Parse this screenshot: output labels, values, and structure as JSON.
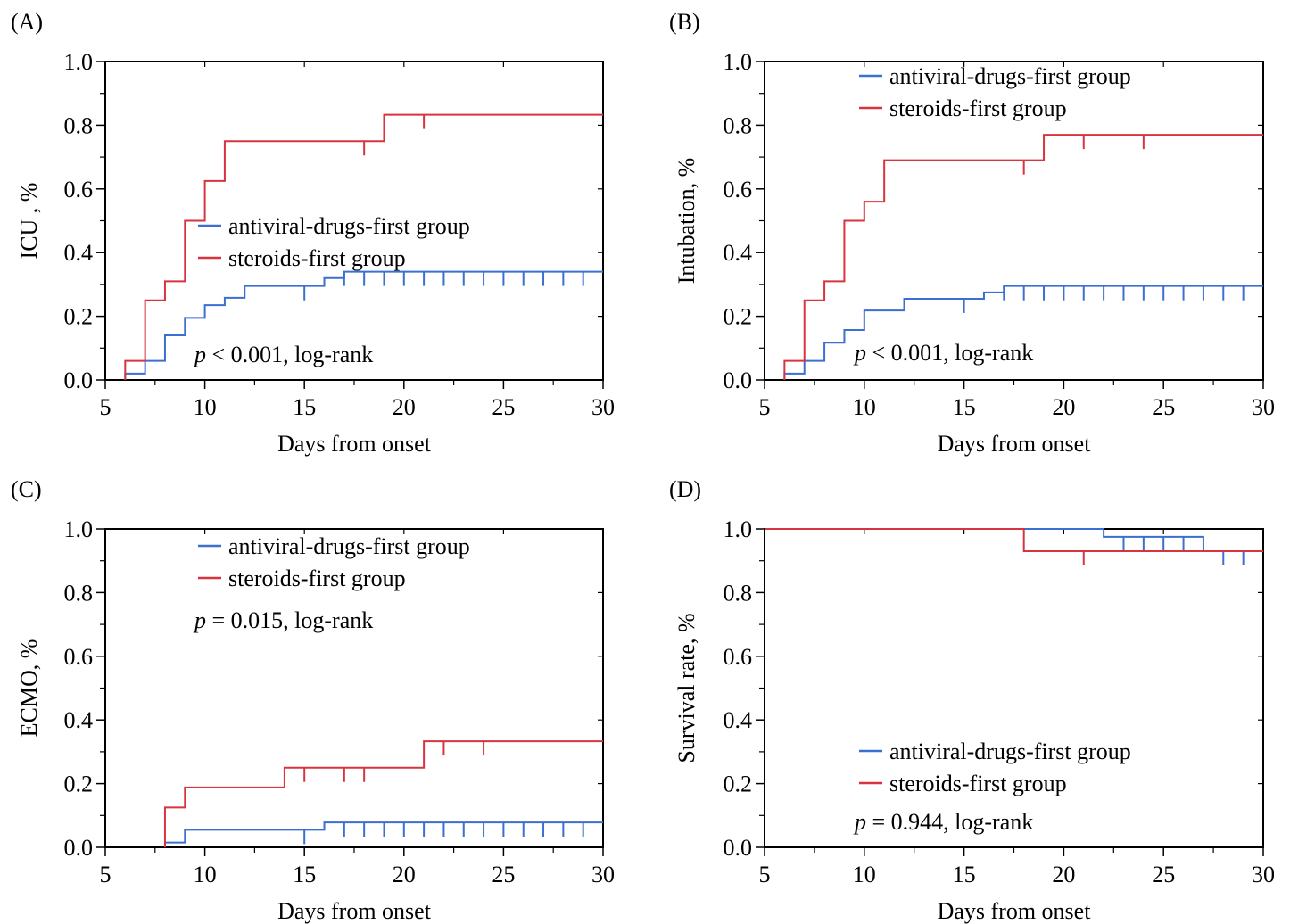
{
  "colors": {
    "antiviral": "#3b6fd0",
    "steroids": "#d8343f",
    "axis": "#000000"
  },
  "chart_data": [
    {
      "panel": "(A)",
      "type": "line",
      "step": true,
      "xlabel": "Days from onset",
      "ylabel": "ICU , %",
      "xlim": [
        5,
        30
      ],
      "ylim": [
        0,
        1
      ],
      "xticks": [
        5,
        10,
        15,
        20,
        25,
        30
      ],
      "xtick_labels": [
        "5",
        "10",
        "15",
        "20",
        "25",
        "30"
      ],
      "yticks": [
        0,
        0.2,
        0.4,
        0.6,
        0.8,
        1.0
      ],
      "ytick_labels": [
        "0.0",
        "0.2",
        "0.4",
        "0.6",
        "0.8",
        "1.0"
      ],
      "legend_placement": "center",
      "pvalue": {
        "p": "p",
        "rest": " < 0.001, log-rank"
      },
      "series": [
        {
          "name": "antiviral-drugs-first group",
          "color_key": "antiviral",
          "steps": [
            [
              6,
              0.02
            ],
            [
              7,
              0.06
            ],
            [
              8,
              0.14
            ],
            [
              9,
              0.195
            ],
            [
              10,
              0.235
            ],
            [
              11,
              0.258
            ],
            [
              12,
              0.295
            ],
            [
              16,
              0.32
            ],
            [
              17,
              0.34
            ],
            [
              30,
              0.34
            ]
          ],
          "censors": [
            [
              15,
              0.295
            ],
            [
              17,
              0.34
            ],
            [
              18,
              0.34
            ],
            [
              19,
              0.34
            ],
            [
              20,
              0.34
            ],
            [
              21,
              0.34
            ],
            [
              22,
              0.34
            ],
            [
              23,
              0.34
            ],
            [
              24,
              0.34
            ],
            [
              25,
              0.34
            ],
            [
              26,
              0.34
            ],
            [
              27,
              0.34
            ],
            [
              28,
              0.34
            ],
            [
              29,
              0.34
            ]
          ]
        },
        {
          "name": "steroids-first group",
          "color_key": "steroids",
          "steps": [
            [
              6,
              0.06
            ],
            [
              7,
              0.25
            ],
            [
              8,
              0.31
            ],
            [
              9,
              0.5
            ],
            [
              10,
              0.625
            ],
            [
              11,
              0.75
            ],
            [
              19,
              0.833
            ],
            [
              30,
              0.833
            ]
          ],
          "censors": [
            [
              18,
              0.75
            ],
            [
              21,
              0.833
            ]
          ]
        }
      ]
    },
    {
      "panel": "(B)",
      "type": "line",
      "step": true,
      "xlabel": "Days from onset",
      "ylabel": "Intubation, %",
      "xlim": [
        5,
        30
      ],
      "ylim": [
        0,
        1
      ],
      "xticks": [
        5,
        10,
        15,
        20,
        25,
        30
      ],
      "xtick_labels": [
        "5",
        "10",
        "15",
        "20",
        "25",
        "30"
      ],
      "yticks": [
        0,
        0.2,
        0.4,
        0.6,
        0.8,
        1.0
      ],
      "ytick_labels": [
        "0.0",
        "0.2",
        "0.4",
        "0.6",
        "0.8",
        "1.0"
      ],
      "legend_placement": "top",
      "pvalue": {
        "p": "p",
        "rest": " < 0.001, log-rank"
      },
      "series": [
        {
          "name": "antiviral-drugs-first group",
          "color_key": "antiviral",
          "steps": [
            [
              6,
              0.02
            ],
            [
              7,
              0.06
            ],
            [
              8,
              0.117
            ],
            [
              9,
              0.157
            ],
            [
              10,
              0.218
            ],
            [
              12,
              0.255
            ],
            [
              16,
              0.275
            ],
            [
              17,
              0.295
            ],
            [
              30,
              0.295
            ]
          ],
          "censors": [
            [
              15,
              0.255
            ],
            [
              17,
              0.295
            ],
            [
              18,
              0.295
            ],
            [
              19,
              0.295
            ],
            [
              20,
              0.295
            ],
            [
              21,
              0.295
            ],
            [
              22,
              0.295
            ],
            [
              23,
              0.295
            ],
            [
              24,
              0.295
            ],
            [
              25,
              0.295
            ],
            [
              26,
              0.295
            ],
            [
              27,
              0.295
            ],
            [
              28,
              0.295
            ],
            [
              29,
              0.295
            ]
          ]
        },
        {
          "name": "steroids-first group",
          "color_key": "steroids",
          "steps": [
            [
              6,
              0.06
            ],
            [
              7,
              0.25
            ],
            [
              8,
              0.31
            ],
            [
              9,
              0.5
            ],
            [
              10,
              0.56
            ],
            [
              11,
              0.69
            ],
            [
              19,
              0.77
            ],
            [
              30,
              0.77
            ]
          ],
          "censors": [
            [
              18,
              0.69
            ],
            [
              21,
              0.77
            ],
            [
              24,
              0.77
            ]
          ]
        }
      ]
    },
    {
      "panel": "(C)",
      "type": "line",
      "step": true,
      "xlabel": "Days from onset",
      "ylabel": "ECMO, %",
      "xlim": [
        5,
        30
      ],
      "ylim": [
        0,
        1
      ],
      "xticks": [
        5,
        10,
        15,
        20,
        25,
        30
      ],
      "xtick_labels": [
        "5",
        "10",
        "15",
        "20",
        "25",
        "30"
      ],
      "yticks": [
        0,
        0.2,
        0.4,
        0.6,
        0.8,
        1.0
      ],
      "ytick_labels": [
        "0.0",
        "0.2",
        "0.4",
        "0.6",
        "0.8",
        "1.0"
      ],
      "legend_placement": "top",
      "pvalue": {
        "p": "p",
        "rest": " = 0.015, log-rank"
      },
      "series": [
        {
          "name": "antiviral-drugs-first group",
          "color_key": "antiviral",
          "steps": [
            [
              8,
              0.015
            ],
            [
              9,
              0.055
            ],
            [
              16,
              0.078
            ],
            [
              30,
              0.078
            ]
          ],
          "censors": [
            [
              15,
              0.055
            ],
            [
              17,
              0.078
            ],
            [
              18,
              0.078
            ],
            [
              19,
              0.078
            ],
            [
              20,
              0.078
            ],
            [
              21,
              0.078
            ],
            [
              22,
              0.078
            ],
            [
              23,
              0.078
            ],
            [
              24,
              0.078
            ],
            [
              25,
              0.078
            ],
            [
              26,
              0.078
            ],
            [
              27,
              0.078
            ],
            [
              28,
              0.078
            ],
            [
              29,
              0.078
            ]
          ]
        },
        {
          "name": "steroids-first group",
          "color_key": "steroids",
          "steps": [
            [
              8,
              0.125
            ],
            [
              9,
              0.188
            ],
            [
              14,
              0.25
            ],
            [
              21,
              0.333
            ],
            [
              30,
              0.333
            ]
          ],
          "censors": [
            [
              15,
              0.25
            ],
            [
              17,
              0.25
            ],
            [
              18,
              0.25
            ],
            [
              22,
              0.333
            ],
            [
              24,
              0.333
            ]
          ]
        }
      ]
    },
    {
      "panel": "(D)",
      "type": "line",
      "step": true,
      "xlabel": "Days from onset",
      "ylabel": "Survival rate, %",
      "xlim": [
        5,
        30
      ],
      "ylim": [
        0,
        1
      ],
      "xticks": [
        5,
        10,
        15,
        20,
        25,
        30
      ],
      "xtick_labels": [
        "5",
        "10",
        "15",
        "20",
        "25",
        "30"
      ],
      "yticks": [
        0,
        0.2,
        0.4,
        0.6,
        0.8,
        1.0
      ],
      "ytick_labels": [
        "0.0",
        "0.2",
        "0.4",
        "0.6",
        "0.8",
        "1.0"
      ],
      "legend_placement": "bottom",
      "pvalue": {
        "p": "p",
        "rest": " = 0.944, log-rank"
      },
      "series": [
        {
          "name": "antiviral-drugs-first group",
          "color_key": "antiviral",
          "steps": [
            [
              5,
              1.0
            ],
            [
              22,
              0.975
            ],
            [
              27,
              0.93
            ],
            [
              30,
              0.93
            ]
          ],
          "censors": [
            [
              23,
              0.975
            ],
            [
              24,
              0.975
            ],
            [
              25,
              0.975
            ],
            [
              26,
              0.975
            ],
            [
              28,
              0.93
            ],
            [
              29,
              0.93
            ]
          ]
        },
        {
          "name": "steroids-first group",
          "color_key": "steroids",
          "steps": [
            [
              5,
              1.0
            ],
            [
              18,
              0.93
            ],
            [
              30,
              0.93
            ]
          ],
          "censors": [
            [
              21,
              0.93
            ]
          ]
        }
      ]
    }
  ]
}
